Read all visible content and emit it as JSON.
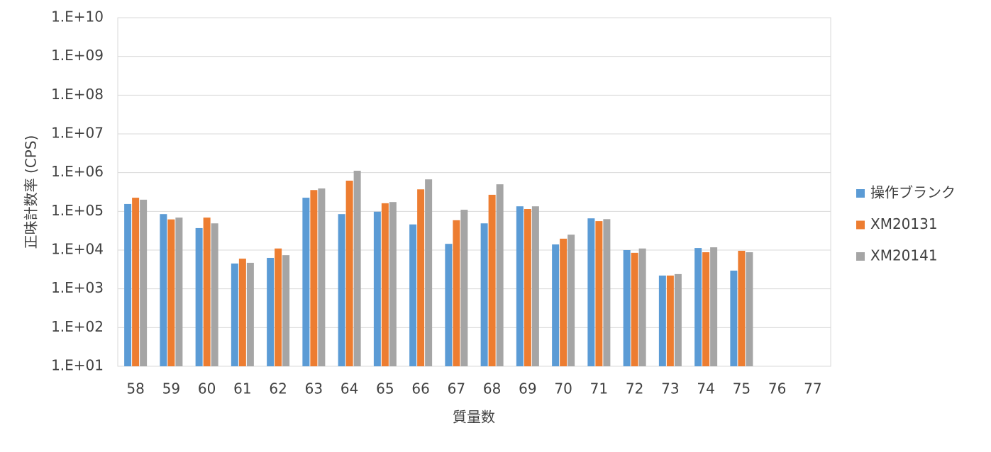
{
  "chart_data": {
    "type": "bar",
    "x_label": "質量数",
    "y_label": "正味計数率 (CPS)",
    "categories": [
      "58",
      "59",
      "60",
      "61",
      "62",
      "63",
      "64",
      "65",
      "66",
      "67",
      "68",
      "69",
      "70",
      "71",
      "72",
      "73",
      "74",
      "75",
      "76",
      "77"
    ],
    "series": [
      {
        "name": "操作ブランク",
        "color": "#5b9bd5",
        "values": [
          155000,
          85000,
          37000,
          4500,
          6300,
          225000,
          85000,
          98000,
          46000,
          14500,
          49000,
          135000,
          14000,
          66000,
          10000,
          2200,
          11300,
          2950,
          null,
          null
        ]
      },
      {
        "name": "XM20131",
        "color": "#ed7d31",
        "values": [
          225000,
          62000,
          69000,
          6000,
          11000,
          355000,
          620000,
          162000,
          370000,
          59000,
          268000,
          115000,
          19700,
          56000,
          8500,
          2200,
          8800,
          9600,
          null,
          null
        ]
      },
      {
        "name": "XM20141",
        "color": "#a5a5a5",
        "values": [
          200000,
          69000,
          49000,
          4700,
          7400,
          390000,
          1120000,
          174000,
          670000,
          110000,
          500000,
          135000,
          25000,
          63000,
          11000,
          2400,
          11800,
          8800,
          null,
          null
        ]
      }
    ],
    "ylim": [
      10,
      10000000000
    ],
    "log_scale": true,
    "yticks": [
      {
        "value": 10,
        "label": "1.E+01"
      },
      {
        "value": 100,
        "label": "1.E+02"
      },
      {
        "value": 1000,
        "label": "1.E+03"
      },
      {
        "value": 10000,
        "label": "1.E+04"
      },
      {
        "value": 100000,
        "label": "1.E+05"
      },
      {
        "value": 1000000,
        "label": "1.E+06"
      },
      {
        "value": 10000000,
        "label": "1.E+07"
      },
      {
        "value": 100000000,
        "label": "1.E+08"
      },
      {
        "value": 1000000000,
        "label": "1.E+09"
      },
      {
        "value": 10000000000,
        "label": "1.E+10"
      }
    ],
    "grid": true,
    "legend_position": "right"
  }
}
